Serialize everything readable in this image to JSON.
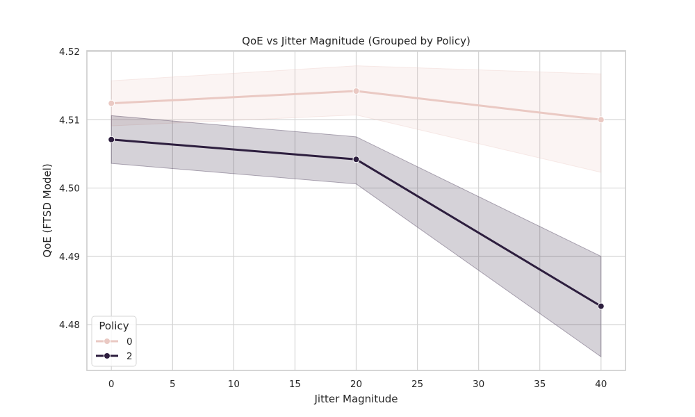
{
  "chart_data": {
    "type": "line",
    "title": "QoE vs Jitter Magnitude (Grouped by Policy)",
    "xlabel": "Jitter Magnitude",
    "ylabel": "QoE (FTSD Model)",
    "xlim": [
      -2,
      42
    ],
    "ylim": [
      4.4733,
      4.5201
    ],
    "xticks": [
      0,
      5,
      10,
      15,
      20,
      25,
      30,
      35,
      40
    ],
    "yticks": [
      4.48,
      4.49,
      4.5,
      4.51,
      4.52
    ],
    "ytick_labels": [
      "4.48",
      "4.49",
      "4.50",
      "4.51",
      "4.52"
    ],
    "grid": true,
    "legend_title": "Policy",
    "legend_position": "lower-left",
    "series": [
      {
        "name": "0",
        "color": "#eac9c3",
        "x": [
          0,
          20,
          40
        ],
        "values": [
          4.5124,
          4.5142,
          4.51
        ],
        "ci_lower": [
          4.5091,
          4.5107,
          4.5023
        ],
        "ci_upper": [
          4.5157,
          4.5179,
          4.5167
        ]
      },
      {
        "name": "2",
        "color": "#2d1e3e",
        "x": [
          0,
          20,
          40
        ],
        "values": [
          4.5071,
          4.5042,
          4.4827
        ],
        "ci_lower": [
          4.5036,
          4.5006,
          4.4753
        ],
        "ci_upper": [
          4.5106,
          4.5075,
          4.49
        ]
      }
    ]
  }
}
